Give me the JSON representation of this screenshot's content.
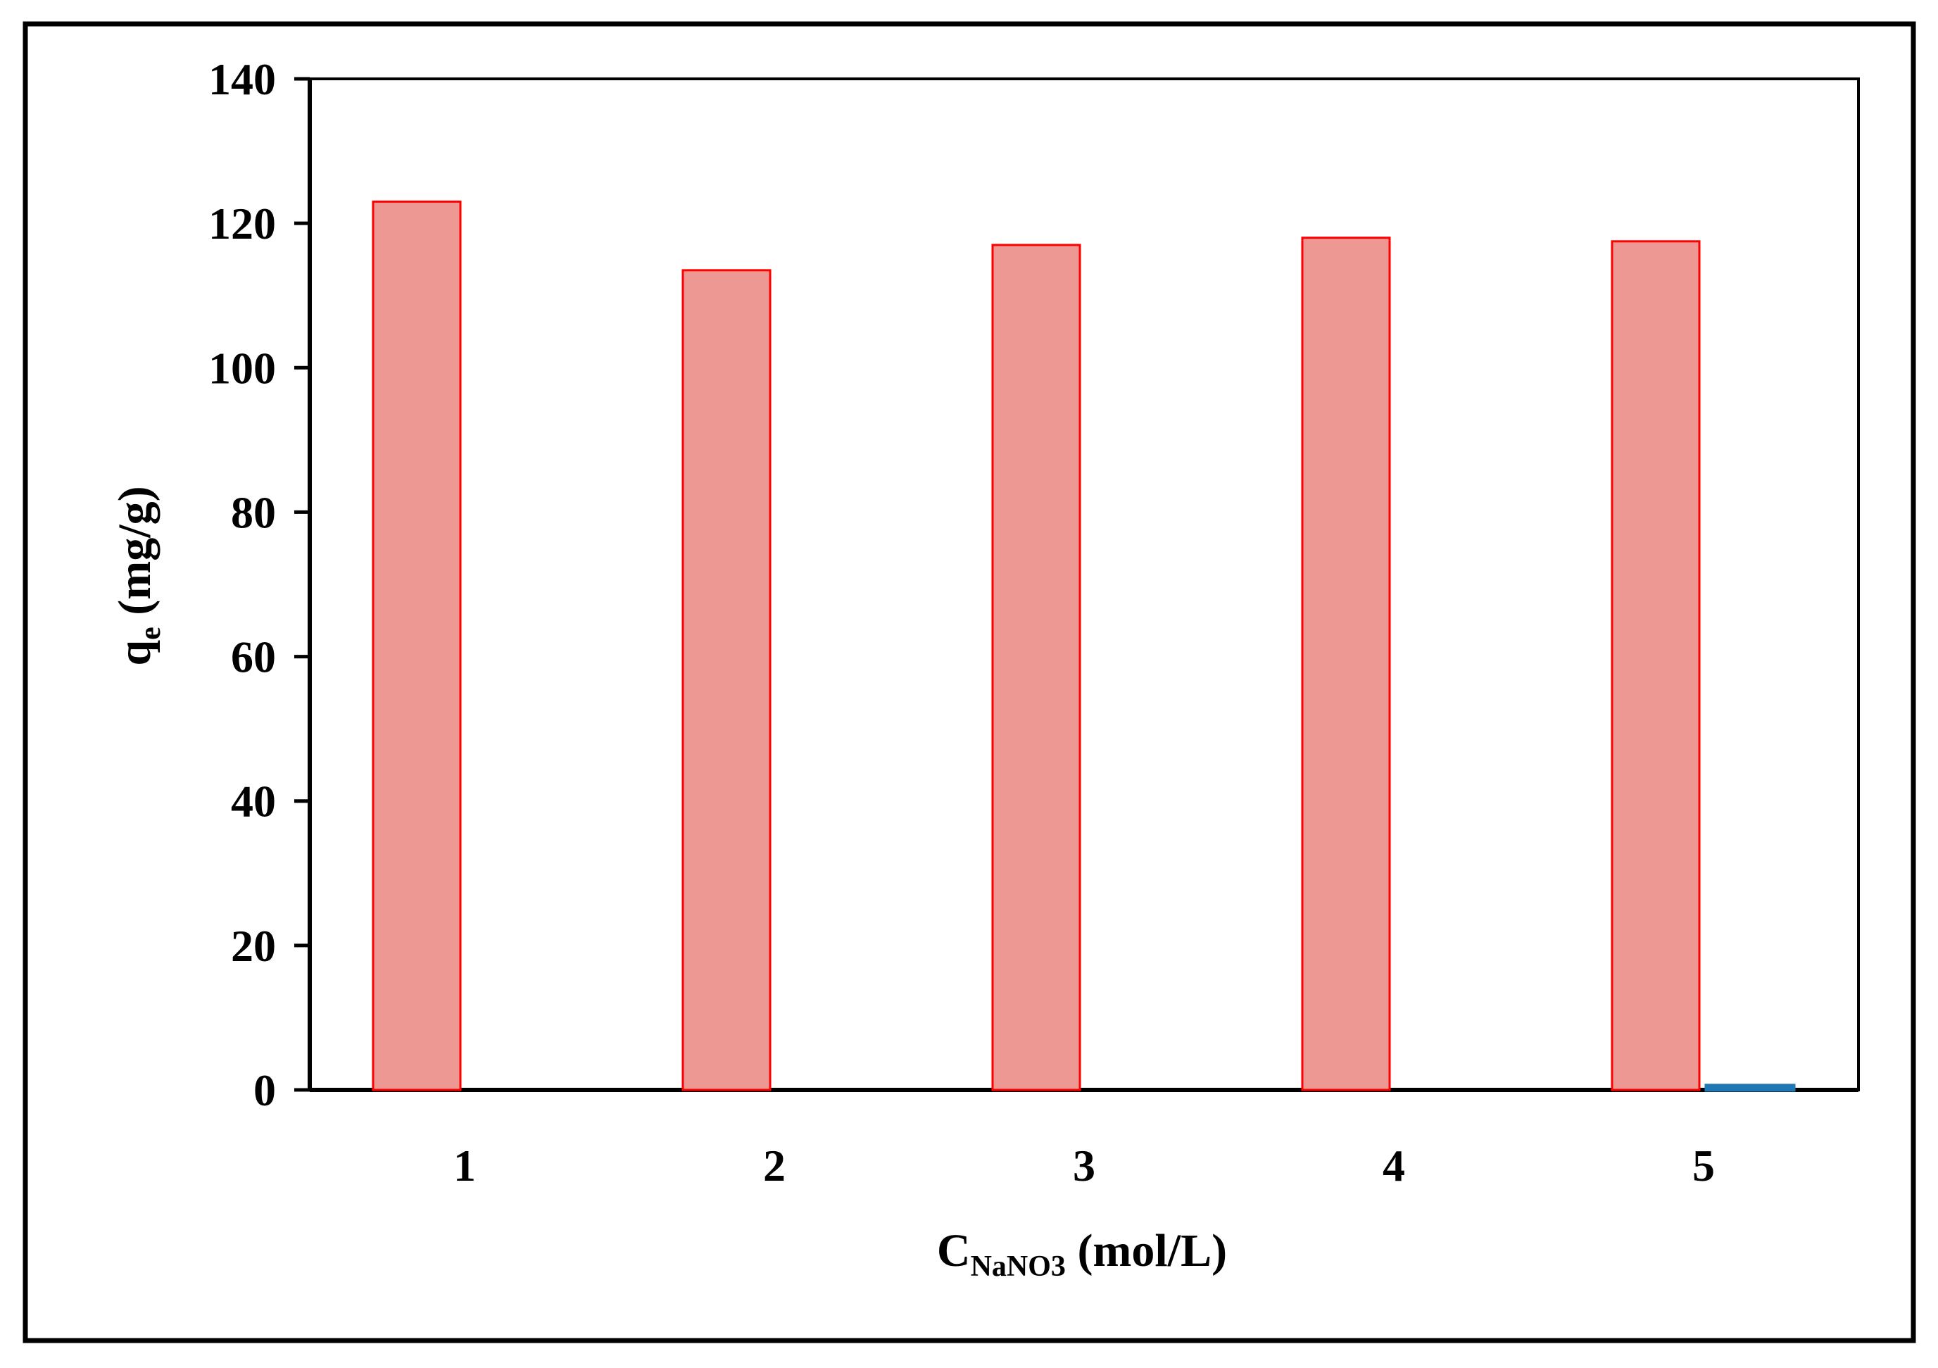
{
  "chart_data": {
    "type": "bar",
    "categories": [
      "1",
      "2",
      "3",
      "4",
      "5"
    ],
    "series": [
      {
        "values": [
          123,
          113.5,
          117,
          118,
          117.5
        ],
        "color": "#ee9894",
        "stroke": "#ff0000"
      },
      {
        "values": [
          0,
          0,
          0,
          0,
          0.6
        ],
        "color": "#1f77b4",
        "stroke": "#1f77b4"
      }
    ],
    "ylabel": {
      "main": "q",
      "sub": "e",
      "unit": " (mg/g)"
    },
    "xlabel": {
      "main": "C",
      "sub": "NaNO3",
      "unit": " (mol/L)"
    },
    "ylim": [
      0,
      140
    ],
    "yticks": [
      0,
      20,
      40,
      60,
      80,
      100,
      120,
      140
    ],
    "grid": false,
    "legend": "none"
  }
}
